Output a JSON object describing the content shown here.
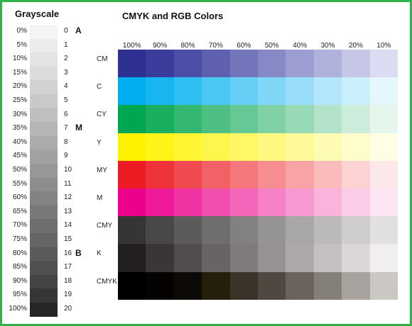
{
  "grayscale": {
    "title": "Grayscale",
    "percent_labels": [
      "0%",
      "5%",
      "10%",
      "15%",
      "20%",
      "25%",
      "30%",
      "35%",
      "40%",
      "45%",
      "50%",
      "55%",
      "60%",
      "65%",
      "70%",
      "75%",
      "80%",
      "85%",
      "90%",
      "95%",
      "100%"
    ],
    "swatches": [
      "#f4f4f4",
      "#ececec",
      "#e4e4e4",
      "#dcdcdc",
      "#d2d2d2",
      "#c9c9c9",
      "#bfbfbf",
      "#b5b5b5",
      "#ababab",
      "#a1a1a1",
      "#979797",
      "#8d8d8d",
      "#838383",
      "#797979",
      "#6f6f6f",
      "#656565",
      "#5b5b5b",
      "#505050",
      "#444444",
      "#363636",
      "#262626"
    ],
    "numbers": [
      "0",
      "1",
      "2",
      "3",
      "4",
      "5",
      "6",
      "7",
      "8",
      "9",
      "10",
      "11",
      "12",
      "13",
      "14",
      "15",
      "16",
      "17",
      "18",
      "19",
      "20"
    ],
    "markers": [
      {
        "label": "A",
        "index": 0
      },
      {
        "label": "M",
        "index": 7
      },
      {
        "label": "B",
        "index": 16
      }
    ]
  },
  "colors": {
    "title": "CMYK and RGB Colors",
    "column_headers": [
      "100%",
      "90%",
      "80%",
      "70%",
      "60%",
      "50%",
      "40%",
      "30%",
      "20%",
      "10%"
    ],
    "rows": [
      {
        "label": "CM",
        "cells": [
          "#2e3192",
          "#3b3d9c",
          "#4d4fa6",
          "#5f61b0",
          "#7476bb",
          "#8789c6",
          "#9c9dd1",
          "#b0b1dc",
          "#c6c6e6",
          "#dbdbf1"
        ]
      },
      {
        "label": "C",
        "cells": [
          "#00aeef",
          "#18b6f1",
          "#2fbff2",
          "#4bc7f4",
          "#66cff5",
          "#80d6f7",
          "#99def8",
          "#b3e6fa",
          "#cceffc",
          "#e5f7fd"
        ]
      },
      {
        "label": "CY",
        "cells": [
          "#00a651",
          "#1aae61",
          "#33b772",
          "#4dbf83",
          "#66c894",
          "#80d1a5",
          "#99dab6",
          "#b3e3c8",
          "#cceddb",
          "#e5f6ec"
        ]
      },
      {
        "label": "Y",
        "cells": [
          "#fff200",
          "#fff31a",
          "#fff533",
          "#fff64d",
          "#fff766",
          "#fff880",
          "#fffa99",
          "#fffbb3",
          "#fffccc",
          "#fffee5"
        ]
      },
      {
        "label": "MY",
        "cells": [
          "#ed1c24",
          "#ef333a",
          "#f14a50",
          "#f26166",
          "#f4777c",
          "#f68d91",
          "#f8a4a7",
          "#fabbbd",
          "#fcd2d3",
          "#fde8e9"
        ]
      },
      {
        "label": "M",
        "cells": [
          "#ec008c",
          "#ee1a98",
          "#f033a3",
          "#f24daf",
          "#f466ba",
          "#f580c6",
          "#f799d1",
          "#f9b3dd",
          "#fbcce8",
          "#fde5f4"
        ]
      },
      {
        "label": "CMY",
        "cells": [
          "#373435",
          "#4a4748",
          "#5d5a5b",
          "#706d6e",
          "#838081",
          "#969395",
          "#a9a6a8",
          "#bcb9bb",
          "#cfcccd",
          "#e2dfe0"
        ]
      },
      {
        "label": "K",
        "cells": [
          "#231f20",
          "#3a3637",
          "#514d4e",
          "#686465",
          "#7f7b7c",
          "#969293",
          "#ada9aa",
          "#c4c0c1",
          "#dbd7d8",
          "#f0eeee"
        ]
      },
      {
        "label": "CMYK",
        "cells": [
          "#000000",
          "#050302",
          "#0d0906",
          "#241f0a",
          "#3a332a",
          "#504840",
          "#6a635d",
          "#857f7a",
          "#a8a39f",
          "#cbc7c3"
        ]
      }
    ]
  }
}
